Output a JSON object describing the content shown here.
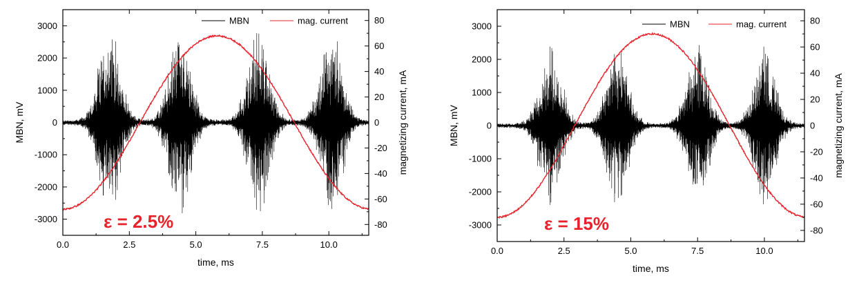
{
  "chart_data": [
    {
      "type": "line",
      "title": "",
      "xlabel": "time, ms",
      "ylabel": "MBN, mV",
      "y2label": "magnetizing current, mA",
      "xlim": [
        0,
        11.5
      ],
      "ylim": [
        -3500,
        3500
      ],
      "y2lim": [
        -88.5,
        88.5
      ],
      "xticks": [
        "0.0",
        "2.5",
        "5.0",
        "7.5",
        "10.0"
      ],
      "yticks": [
        "-3000",
        "-2000",
        "-1000",
        "0",
        "1000",
        "2000",
        "3000"
      ],
      "y2ticks": [
        "-80",
        "-60",
        "-40",
        "-20",
        "0",
        "20",
        "40",
        "60",
        "80"
      ],
      "legend": {
        "position": "top-right",
        "entries": [
          "MBN",
          "mag. current"
        ]
      },
      "annotation": "ε = 2.5%",
      "series": [
        {
          "name": "MBN",
          "axis": "left",
          "color": "#000000",
          "kind": "burst-noise",
          "burst_centers_ms": [
            1.75,
            4.4,
            7.35,
            10.1
          ],
          "peak_envelope_mV": 3100
        },
        {
          "name": "mag. current",
          "axis": "right",
          "color": "#e8212a",
          "kind": "sine",
          "peak_mA": 68,
          "period_ms": 11.6,
          "min_at_ms": 0.0
        }
      ]
    },
    {
      "type": "line",
      "title": "",
      "xlabel": "time, ms",
      "ylabel": "MBN, mV",
      "y2label": "magnetizing current, mA",
      "xlim": [
        0,
        11.5
      ],
      "ylim": [
        -3500,
        3500
      ],
      "y2lim": [
        -88.5,
        88.5
      ],
      "xticks": [
        "0.0",
        "2.5",
        "5.0",
        "7.5",
        "10.0"
      ],
      "yticks": [
        "-3000",
        "-2000",
        "-1000",
        "0",
        "1000",
        "2000",
        "3000"
      ],
      "y2ticks": [
        "-80",
        "-60",
        "-40",
        "-20",
        "0",
        "20",
        "40",
        "60",
        "80"
      ],
      "legend": {
        "position": "top-right",
        "entries": [
          "MBN",
          "mag. current"
        ]
      },
      "annotation": "ε = 15%",
      "series": [
        {
          "name": "MBN",
          "axis": "left",
          "color": "#000000",
          "kind": "burst-noise",
          "burst_centers_ms": [
            2.0,
            4.5,
            7.5,
            10.0
          ],
          "peak_envelope_mV": 2600
        },
        {
          "name": "mag. current",
          "axis": "right",
          "color": "#e8212a",
          "kind": "sine",
          "peak_mA": 70,
          "period_ms": 11.6,
          "min_at_ms": 0.0
        }
      ]
    }
  ]
}
